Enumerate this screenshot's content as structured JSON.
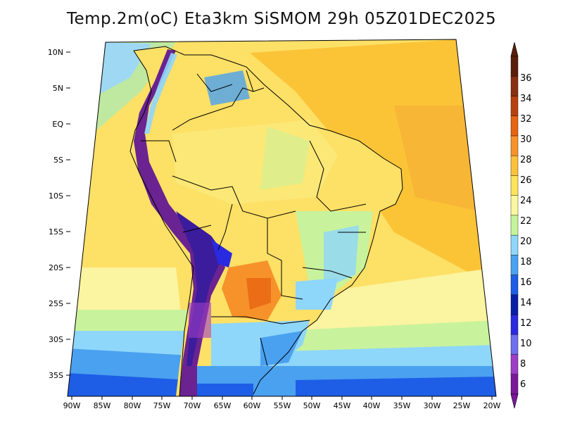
{
  "title": "Temp.2m(oC) Eta3km SiSMOM 29h 05Z01DEC2025",
  "map": {
    "lat_labels": [
      "10N",
      "5N",
      "EQ",
      "5S",
      "10S",
      "15S",
      "20S",
      "25S",
      "30S",
      "35S"
    ],
    "lon_labels": [
      "90W",
      "85W",
      "80W",
      "75W",
      "70W",
      "65W",
      "60W",
      "55W",
      "50W",
      "45W",
      "40W",
      "35W",
      "30W",
      "25W",
      "20W"
    ]
  },
  "colorbar": {
    "labels": [
      "6",
      "8",
      "10",
      "12",
      "14",
      "16",
      "18",
      "20",
      "22",
      "24",
      "26",
      "28",
      "30",
      "32",
      "34",
      "36"
    ],
    "colors": [
      "#7a1a9a",
      "#9d3ec7",
      "#6f6ff0",
      "#2a2ae0",
      "#0a1fa8",
      "#1e5ee6",
      "#4aa1f0",
      "#8fd6fb",
      "#c5f59a",
      "#fbf7a0",
      "#ffe45c",
      "#fdc13c",
      "#f7922a",
      "#e76412",
      "#b8420f",
      "#8a3012",
      "#5a1e0a"
    ]
  },
  "colors": {
    "ocean_warm": "#ffd54a",
    "land_mid": "#ffe45c",
    "andes_cold": "#6a2390"
  }
}
